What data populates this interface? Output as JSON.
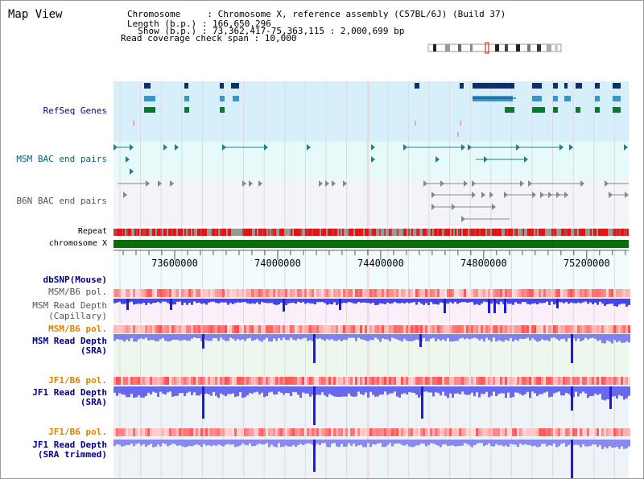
{
  "title": "Map View",
  "info": {
    "chromosome_line": "Chromosome     : Chromosome X, reference assembly (C57BL/6J) (Build 37)",
    "length_line": "Length (b.p.) : 166,650,296",
    "show_line": "  Show (b.p.) : 73,362,417-75,363,115 : 2,000,699 bp",
    "coverage_line": "Read coverage check span : 10,000"
  },
  "tracks": {
    "refseq": "RefSeq Genes",
    "msm_bac": "MSM BAC end pairs",
    "b6n_bac": "B6N BAC end pairs",
    "repeat": "Repeat",
    "chromosome": "chromosome X",
    "dbsnp": "dbSNP(Mouse)",
    "msm_b6_pol_1": "MSM/B6 pol.",
    "msm_depth_cap_1": "MSM Read Depth",
    "msm_depth_cap_2": "(Capillary)",
    "msm_b6_pol_2": "MSM/B6 pol.",
    "msm_depth_sra_1": "MSM Read Depth",
    "msm_depth_sra_2": "(SRA)",
    "jf1_b6_pol_1": "JF1/B6 pol.",
    "jf1_depth_sra_1": "JF1 Read Depth",
    "jf1_depth_sra_2": "(SRA)",
    "jf1_b6_pol_2": "JF1/B6 pol.",
    "jf1_depth_trim_1": "JF1 Read Depth",
    "jf1_depth_trim_2": "(SRA trimmed)"
  },
  "axis": {
    "start": 73362417,
    "end": 75363115,
    "ticks": [
      "73600000",
      "74000000",
      "74400000",
      "74800000",
      "75200000"
    ]
  },
  "colors": {
    "refseq_bg": "#d6effa",
    "bac_bg": "#e6fafa",
    "b6n_bg": "#f3f3fa",
    "chromosome": "#0a6e0a",
    "depth_fill": "#6666ee",
    "label_navy": "#00008b",
    "label_teal": "#006080",
    "label_orange": "#e08000"
  }
}
